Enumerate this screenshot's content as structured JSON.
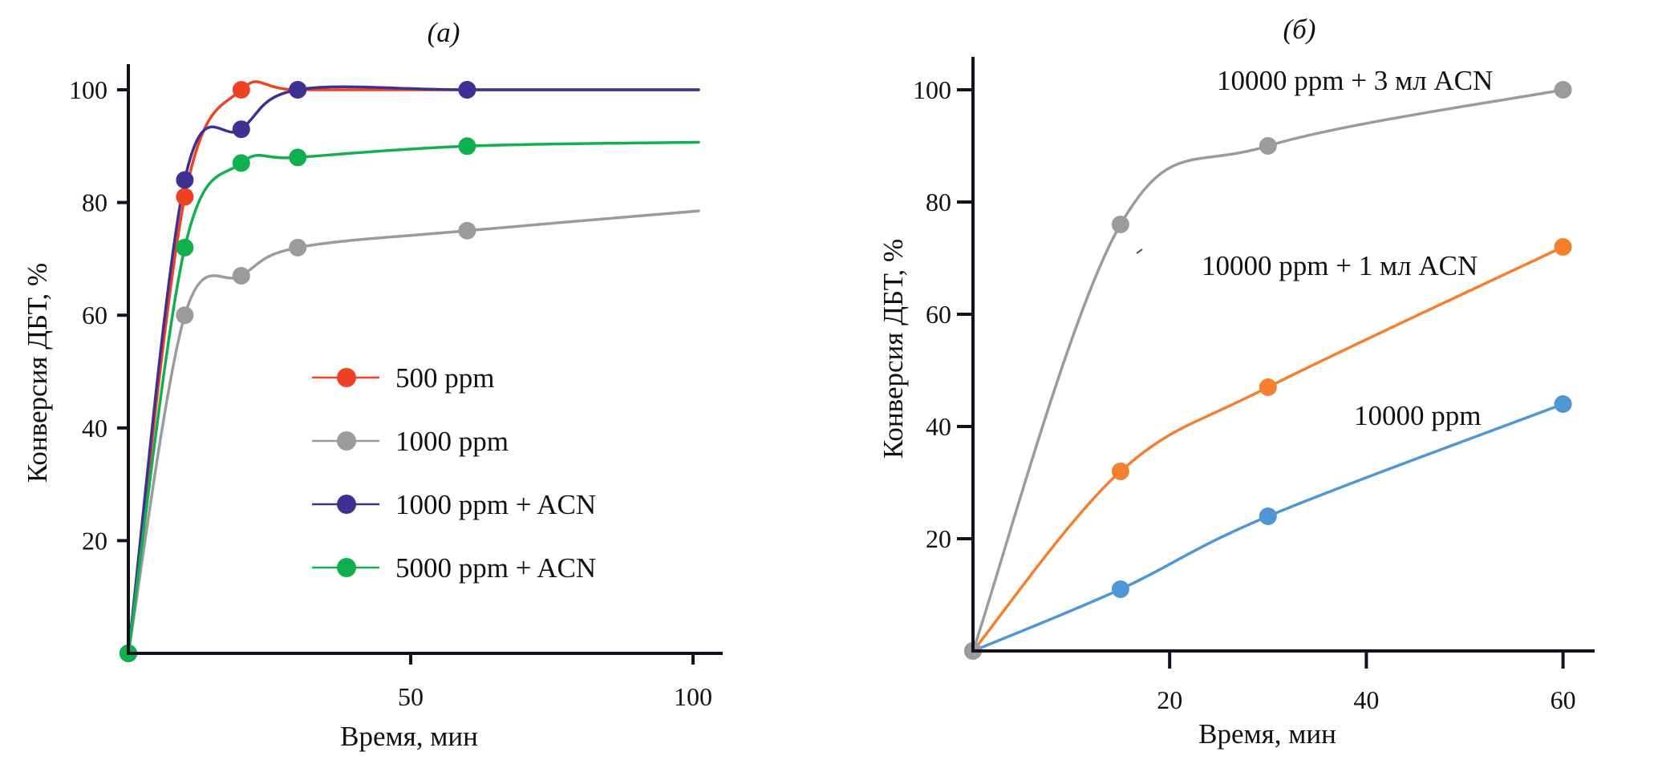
{
  "chart_data": [
    {
      "type": "line",
      "panel_label": "(a)",
      "title": "(a)",
      "xlabel": "Время, мин",
      "ylabel": "Конверсия ДБТ, %",
      "xlim": [
        0,
        103
      ],
      "ylim": [
        0,
        105
      ],
      "xticks": [
        50,
        100
      ],
      "yticks": [
        20,
        40,
        60,
        80,
        100
      ],
      "grid": false,
      "legend": {
        "placement": "center-right",
        "entries": [
          "500 ppm",
          "1000 ppm",
          "1000 ppm + ACN",
          "5000 ppm + ACN"
        ]
      },
      "series": [
        {
          "name": "500 ppm",
          "color": "#ee4224",
          "x": [
            0,
            10,
            20,
            30,
            60
          ],
          "y": [
            0,
            81,
            100,
            100,
            100
          ],
          "line_end": [
            101,
            100
          ]
        },
        {
          "name": "1000 ppm",
          "color": "#9a9b9d",
          "x": [
            0,
            10,
            20,
            30,
            60
          ],
          "y": [
            0,
            60,
            67,
            72,
            75
          ],
          "line_end": [
            101,
            78.5
          ]
        },
        {
          "name": "1000 ppm + ACN",
          "color": "#3f3192",
          "x": [
            0,
            10,
            20,
            30,
            60
          ],
          "y": [
            0,
            84,
            93,
            100,
            100
          ],
          "line_end": [
            101,
            100
          ]
        },
        {
          "name": "5000 ppm + ACN",
          "color": "#10b04f",
          "x": [
            0,
            10,
            20,
            30,
            60
          ],
          "y": [
            0,
            72,
            87,
            88,
            90
          ],
          "line_end": [
            101,
            90.7
          ]
        }
      ]
    },
    {
      "type": "line",
      "panel_label": "(б)",
      "title": "(б)",
      "xlabel": "Время, мин",
      "ylabel": "Конверсия ДБТ, %",
      "xlim": [
        0,
        63
      ],
      "ylim": [
        0,
        105
      ],
      "xticks": [
        20,
        40,
        60
      ],
      "yticks": [
        20,
        40,
        60,
        80,
        100
      ],
      "grid": false,
      "legend": {
        "placement": "none",
        "entries": []
      },
      "annotations": [
        "10000 ppm + 3 мл ACN",
        "10000 ppm + 1 мл ACN",
        "10000 ppm"
      ],
      "series": [
        {
          "name": "10000 ppm",
          "color": "#4f96d5",
          "x": [
            0,
            15,
            30,
            60
          ],
          "y": [
            0,
            11,
            24,
            44
          ],
          "label": "10000 ppm"
        },
        {
          "name": "10000 ppm + 1 мл ACN",
          "color": "#f47f2e",
          "x": [
            0,
            15,
            30,
            60
          ],
          "y": [
            0,
            32,
            47,
            72
          ],
          "label": "10000 ppm + 1 мл ACN"
        },
        {
          "name": "10000 ppm + 3 мл ACN",
          "color": "#9a9b9d",
          "x": [
            0,
            15,
            30,
            60
          ],
          "y": [
            0,
            76,
            90,
            100
          ],
          "label": "10000 ppm + 3 мл ACN"
        }
      ]
    }
  ]
}
